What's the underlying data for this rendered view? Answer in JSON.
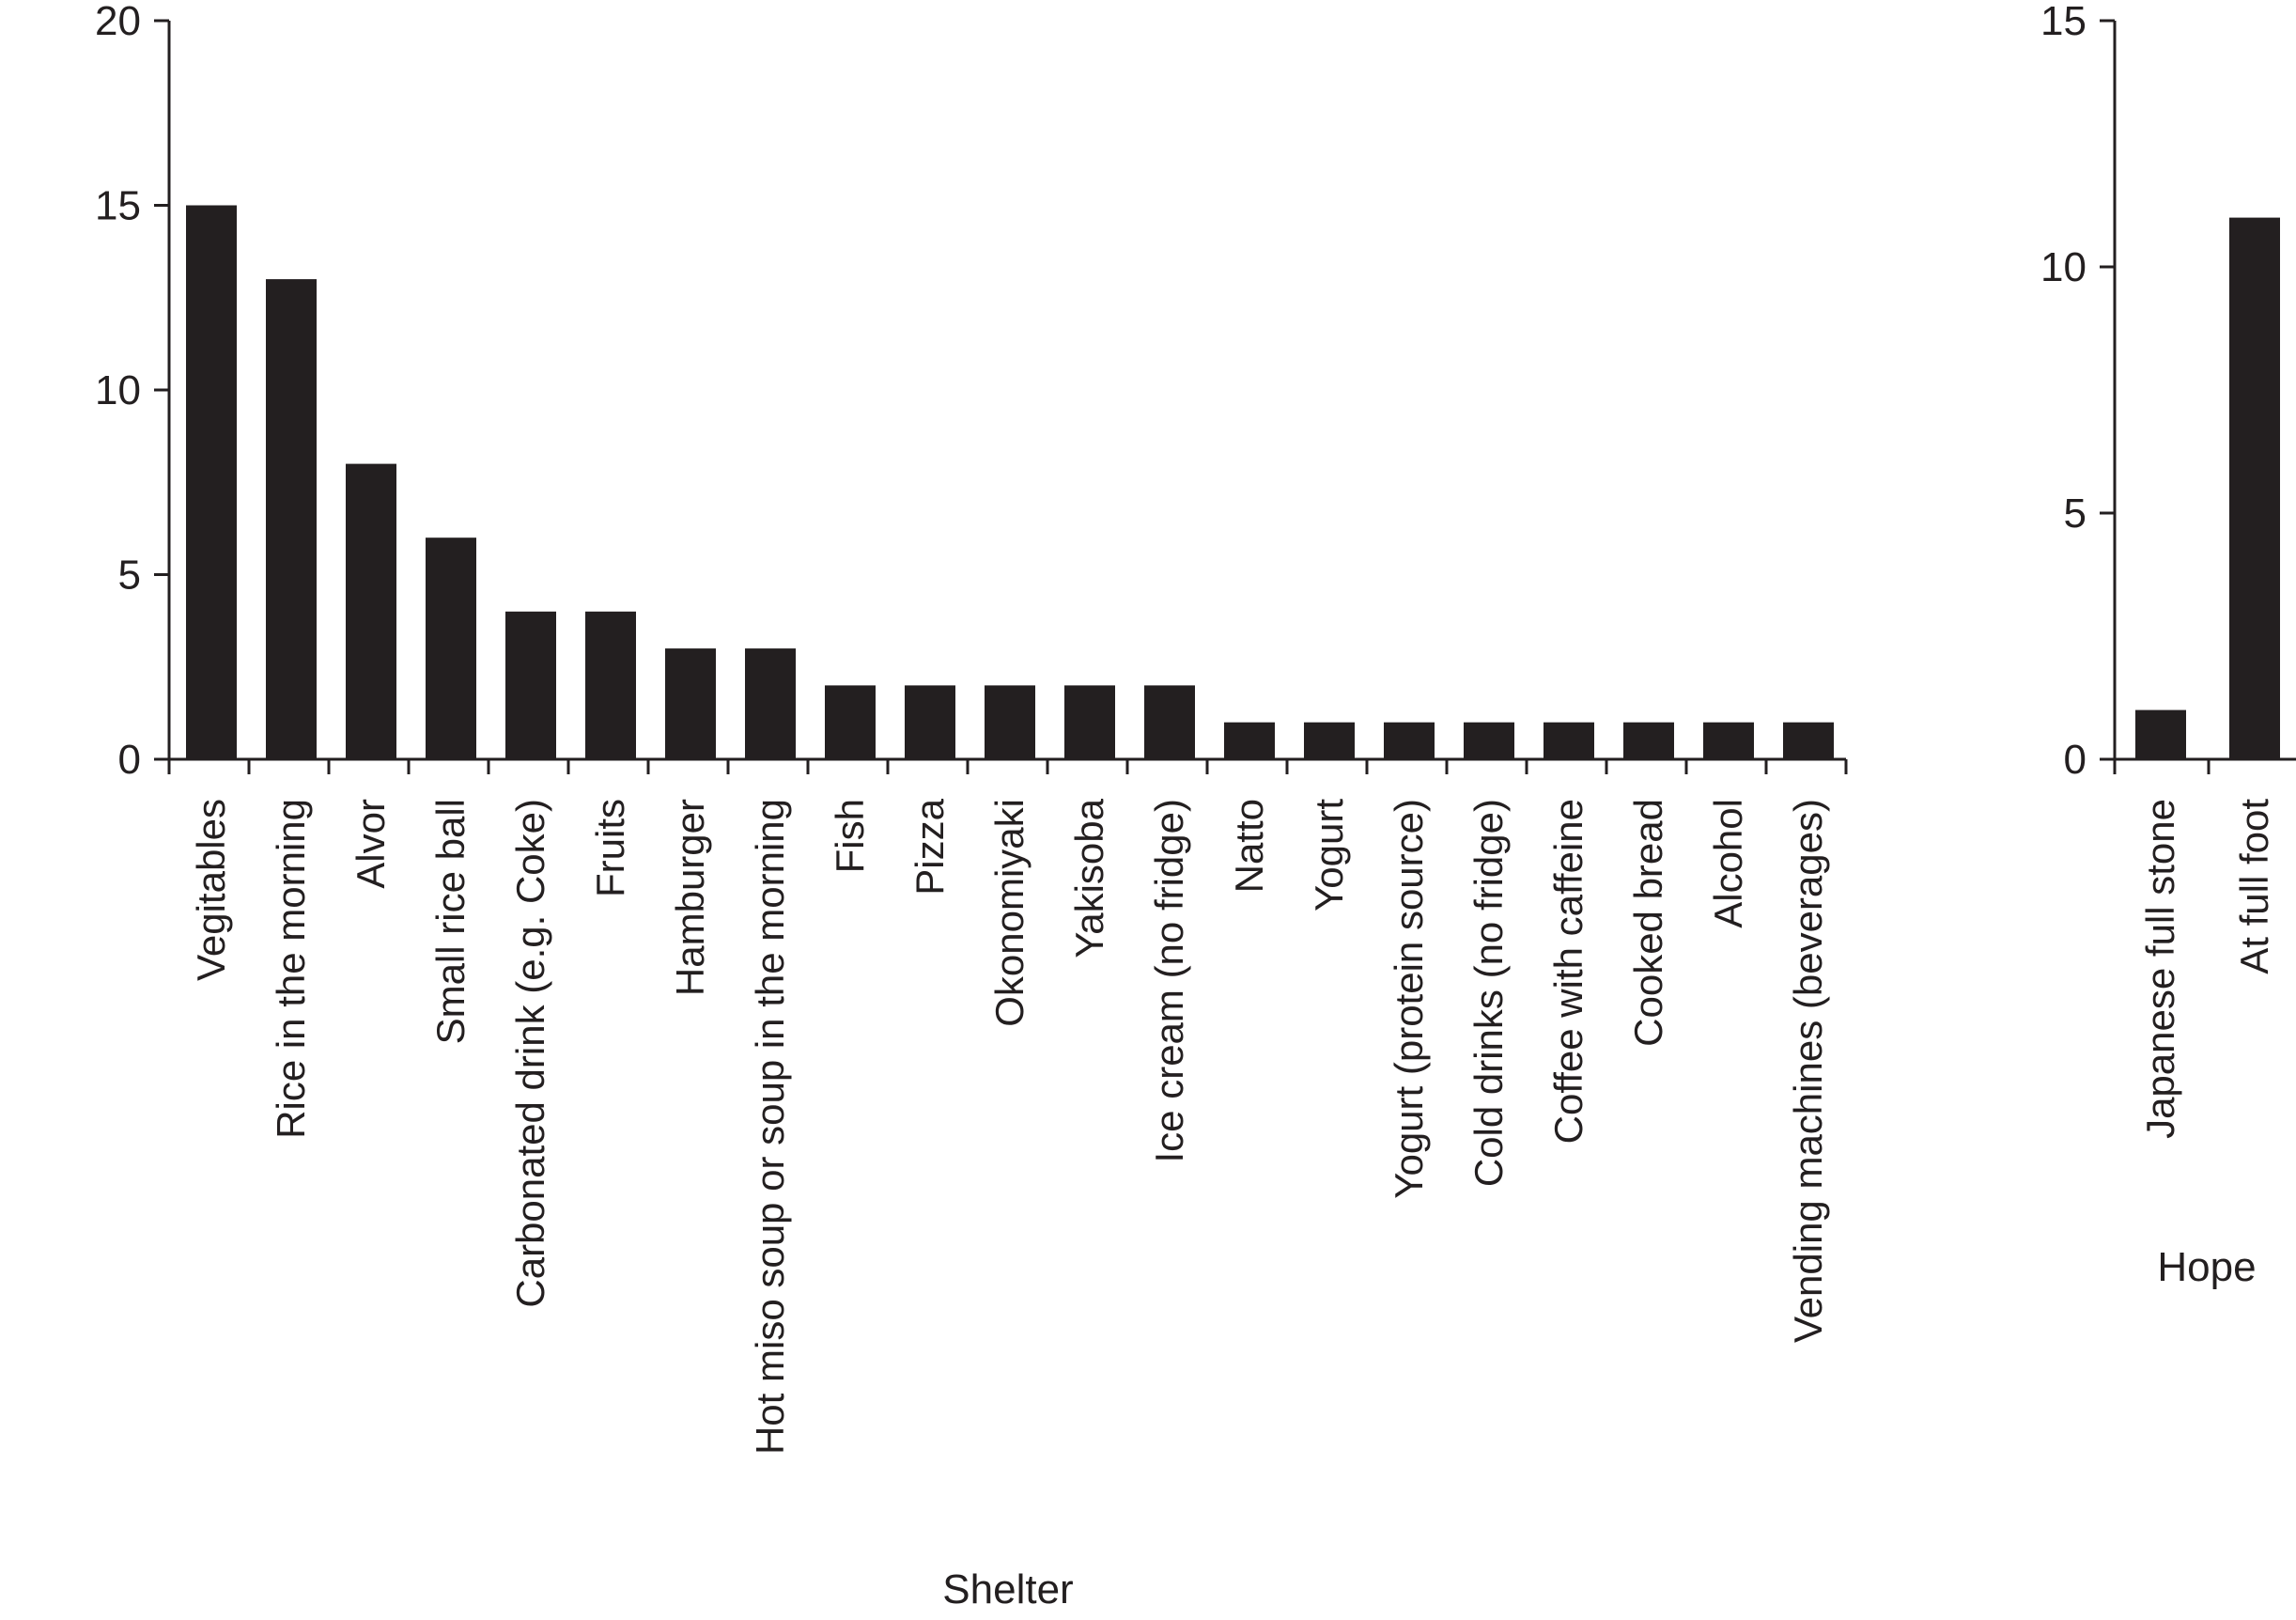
{
  "chart_data": [
    {
      "type": "bar",
      "title": "",
      "xlabel": "Shelter",
      "ylabel": "",
      "ylim": [
        0,
        20
      ],
      "yticks": [
        0,
        5,
        10,
        15,
        20
      ],
      "grid": false,
      "bar_color": "#231f20",
      "categories": [
        "Vegitables",
        "Rice in the morning",
        "Alvor",
        "Small rice ball",
        "Carbonated drink (e.g. Coke)",
        "Fruits",
        "Hamburger",
        "Hot miso soup or soup in the morning",
        "Fish",
        "Pizza",
        "Okonomiyaki",
        "Yakisoba",
        "Ice cream (no fridge)",
        "Natto",
        "Yogurt",
        "Yogurt (protein source)",
        "Cold drinks (no fridge)",
        "Coffee with caffeine",
        "Cooked bread",
        "Alcohol",
        "Vending machines (beverages)"
      ],
      "values": [
        15,
        13,
        8,
        6,
        4,
        4,
        3,
        3,
        2,
        2,
        2,
        2,
        2,
        1,
        1,
        1,
        1,
        1,
        1,
        1,
        1
      ]
    },
    {
      "type": "bar",
      "title": "",
      "xlabel": "Hope",
      "ylabel": "",
      "ylim": [
        0,
        15
      ],
      "yticks": [
        0,
        5,
        10,
        15
      ],
      "grid": false,
      "bar_color": "#231f20",
      "categories": [
        "Japanese full stone",
        "At full foot"
      ],
      "values": [
        1,
        11
      ]
    }
  ]
}
